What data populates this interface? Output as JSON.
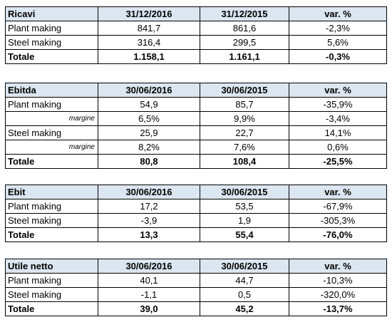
{
  "tables": [
    {
      "header": [
        "Ricavi",
        "31/12/2016",
        "31/12/2015",
        "var. %"
      ],
      "rows": [
        [
          "Plant making",
          "841,7",
          "861,6",
          "-2,3%"
        ],
        [
          "Steel making",
          "316,4",
          "299,5",
          "5,6%"
        ]
      ],
      "total": [
        "Totale",
        "1.158,1",
        "1.161,1",
        "-0,3%"
      ]
    },
    {
      "header": [
        "Ebitda",
        "30/06/2016",
        "30/06/2015",
        "var. %"
      ],
      "rows": [
        [
          "Plant making",
          "54,9",
          "85,7",
          "-35,9%"
        ],
        [
          "margine",
          "6,5%",
          "9,9%",
          "-3,4%"
        ],
        [
          "Steel making",
          "25,9",
          "22,7",
          "14,1%"
        ],
        [
          "margine",
          "8,2%",
          "7,6%",
          "0,6%"
        ]
      ],
      "total": [
        "Totale",
        "80,8",
        "108,4",
        "-25,5%"
      ]
    },
    {
      "header": [
        "Ebit",
        "30/06/2016",
        "30/06/2015",
        "var. %"
      ],
      "rows": [
        [
          "Plant making",
          "17,2",
          "53,5",
          "-67,9%"
        ],
        [
          "Steel making",
          "-3,9",
          "1,9",
          "-305,3%"
        ]
      ],
      "total": [
        "Totale",
        "13,3",
        "55,4",
        "-76,0%"
      ]
    },
    {
      "header": [
        "Utile netto",
        "30/06/2016",
        "30/06/2015",
        "var. %"
      ],
      "rows": [
        [
          "Plant making",
          "40,1",
          "44,7",
          "-10,3%"
        ],
        [
          "Steel making",
          "-1,1",
          "0,5",
          "-320,0%"
        ]
      ],
      "total": [
        "Totale",
        "39,0",
        "45,2",
        "-13,7%"
      ]
    }
  ]
}
